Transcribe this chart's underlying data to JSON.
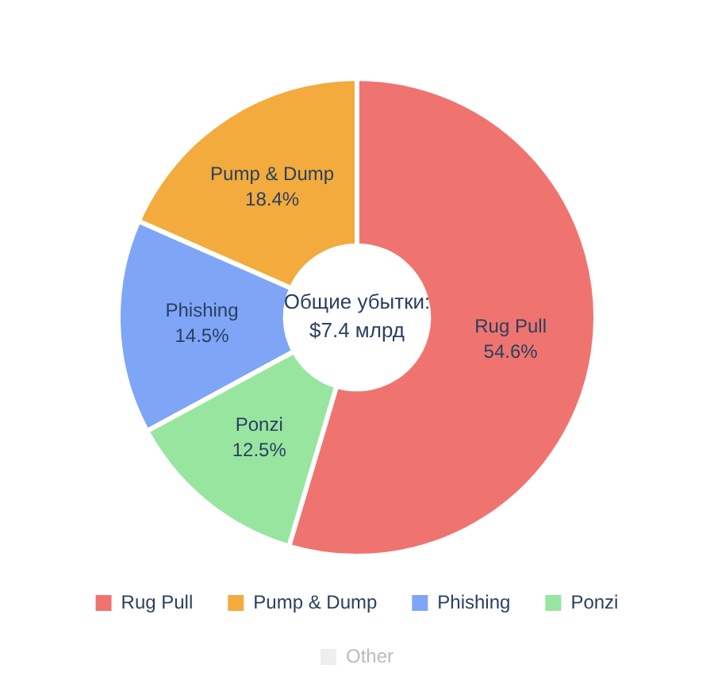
{
  "chart_data": {
    "type": "donut",
    "categories": [
      "Rug Pull",
      "Pump & Dump",
      "Phishing",
      "Ponzi",
      "Other"
    ],
    "values": [
      54.6,
      18.4,
      14.5,
      12.5,
      null
    ],
    "value_labels": [
      "54.6%",
      "18.4%",
      "14.5%",
      "12.5%",
      null
    ],
    "colors": [
      "#ef7470",
      "#f2ab3c",
      "#7fa5f7",
      "#98e5a0",
      "#eeeeee"
    ],
    "annotations": [
      "Общие убытки:\n$7.4 млрд"
    ],
    "legend": "bottom"
  }
}
